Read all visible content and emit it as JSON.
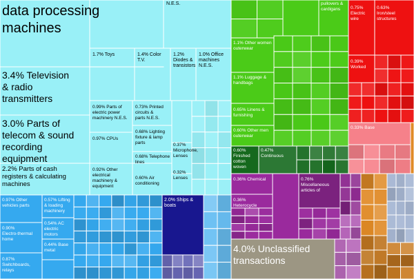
{
  "chart_data": {
    "type": "treemap",
    "title": "",
    "colors": {
      "machinery_light": "#99f0f7",
      "machinery_mid": "#35a9ef",
      "ships": "#18178f",
      "textiles": "#4bcb18",
      "textiles_dark": "#15691d",
      "metals": "#ee1111",
      "metals_light": "#f6818a",
      "chemicals": "#9a2a9d",
      "unclassified": "#9c9683",
      "orange_group": "#e08a26",
      "blue_grey_group": "#a9b9d5",
      "border": "#ffffff"
    },
    "labels": [
      {
        "id": "l1",
        "pct": "",
        "text": "data processing machines",
        "color": "#000000"
      },
      {
        "id": "l2",
        "pct": "",
        "text": "N.E.S.",
        "color": "#000000"
      },
      {
        "id": "l3",
        "pct": "3.4%",
        "text": "Television & radio transmitters",
        "color": "#000000"
      },
      {
        "id": "l4",
        "pct": "3.0%",
        "text": "Parts of telecom & sound recording equipment",
        "color": "#000000"
      },
      {
        "id": "l5",
        "pct": "2.2%",
        "text": "Parts of cash registers & calculating machines",
        "color": "#000000"
      },
      {
        "id": "l6",
        "pct": "1.7%",
        "text": "Toys",
        "color": "#000000"
      },
      {
        "id": "l7",
        "pct": "1.4%",
        "text": "Color T.V.",
        "color": "#000000"
      },
      {
        "id": "l8",
        "pct": "1.2%",
        "text": "Diodes & transistors",
        "color": "#000000"
      },
      {
        "id": "l9",
        "pct": "1.0%",
        "text": "Office machines N.E.S.",
        "color": "#000000"
      },
      {
        "id": "l10",
        "pct": "0.99%",
        "text": "Parts of electric power machinery N.E.S.",
        "color": "#000000"
      },
      {
        "id": "l11",
        "pct": "0.73%",
        "text": "Printed circuits & parts N.E.S.",
        "color": "#000000"
      },
      {
        "id": "l12",
        "pct": "0.97%",
        "text": "CPUs",
        "color": "#000000"
      },
      {
        "id": "l13",
        "pct": "0.68%",
        "text": "Lighting fixture & lamp parts",
        "color": "#000000"
      },
      {
        "id": "l14",
        "pct": "0.68%",
        "text": "Telephone lines",
        "color": "#000000"
      },
      {
        "id": "l15",
        "pct": "0.37%",
        "text": "Microphone, Lenses",
        "color": "#000000"
      },
      {
        "id": "l16",
        "pct": "0.32%",
        "text": "Lenses",
        "color": "#000000"
      },
      {
        "id": "l17",
        "pct": "0.92%",
        "text": "Other electrical machinery & equipment",
        "color": "#000000"
      },
      {
        "id": "l18",
        "pct": "0.60%",
        "text": "Air conditioning",
        "color": "#000000"
      },
      {
        "id": "l19",
        "pct": "0.97%",
        "text": "Other vehicles parts",
        "color": "#ffffff"
      },
      {
        "id": "l20",
        "pct": "0.57%",
        "text": "Lifting & loading machinery",
        "color": "#ffffff"
      },
      {
        "id": "l21",
        "pct": "0.90%",
        "text": "Electro-thermal home",
        "color": "#ffffff"
      },
      {
        "id": "l22",
        "pct": "0.54%",
        "text": "AC electric motors",
        "color": "#ffffff"
      },
      {
        "id": "l23",
        "pct": "0.44%",
        "text": "Base metal",
        "color": "#ffffff"
      },
      {
        "id": "l24",
        "pct": "0.87%",
        "text": "Switchboards, relays",
        "color": "#ffffff"
      },
      {
        "id": "l25",
        "pct": "2.0%",
        "text": "Ships & boats",
        "color": "#ffffff"
      },
      {
        "id": "l26",
        "pct": "",
        "text": "pullovers & cardigans",
        "color": "#ffffff"
      },
      {
        "id": "l27",
        "pct": "1.1%",
        "text": "Other women outerwear",
        "color": "#ffffff"
      },
      {
        "id": "l28",
        "pct": "1.1%",
        "text": "Luggage & handbags",
        "color": "#ffffff"
      },
      {
        "id": "l29",
        "pct": "0.65%",
        "text": "Linens & furnishing",
        "color": "#ffffff"
      },
      {
        "id": "l30",
        "pct": "0.60%",
        "text": "Other men outerwear",
        "color": "#ffffff"
      },
      {
        "id": "l31",
        "pct": "0.60%",
        "text": "Finished cotton woven",
        "color": "#ffffff"
      },
      {
        "id": "l32",
        "pct": "0.47%",
        "text": "Continuous",
        "color": "#ffffff"
      },
      {
        "id": "l33",
        "pct": "0.75%",
        "text": "Electric wire",
        "color": "#ffffff"
      },
      {
        "id": "l34",
        "pct": "0.63%",
        "text": "Iron/steel structures",
        "color": "#ffffff"
      },
      {
        "id": "l35",
        "pct": "0.39%",
        "text": "Worked",
        "color": "#ffffff"
      },
      {
        "id": "l36",
        "pct": "0.33%",
        "text": "Base",
        "color": "#ffffff"
      },
      {
        "id": "l37",
        "pct": "0.36%",
        "text": "Chemical",
        "color": "#ffffff"
      },
      {
        "id": "l38",
        "pct": "0.76%",
        "text": "Miscellaneous articles of",
        "color": "#ffffff"
      },
      {
        "id": "l39",
        "pct": "0.36%",
        "text": "Heterocycle",
        "color": "#ffffff"
      },
      {
        "id": "l40",
        "pct": "4.0%",
        "text": "Unclassified transactions",
        "color": "#ffffff"
      }
    ]
  }
}
